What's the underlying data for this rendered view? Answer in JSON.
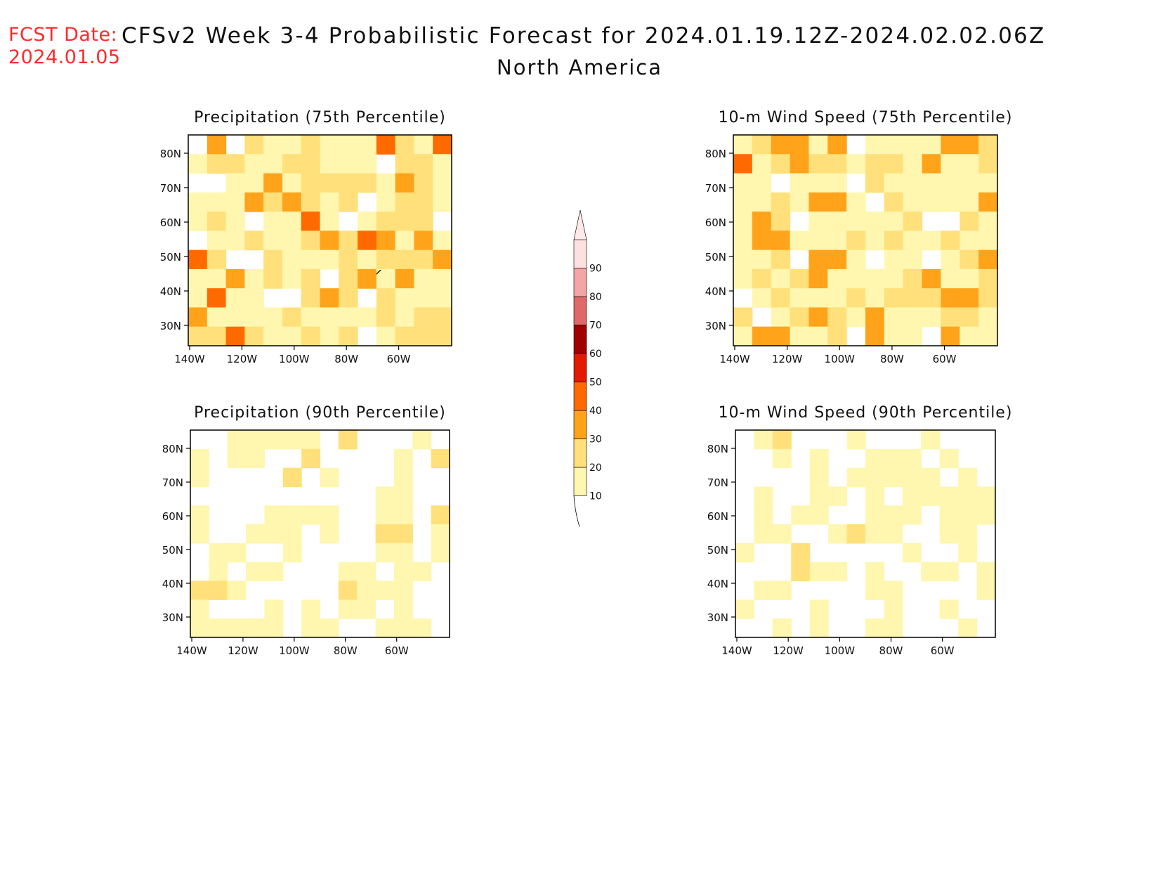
{
  "header": {
    "fcst_label": "FCST Date:",
    "fcst_date": "2024.01.05",
    "title": "CFSv2 Week 3-4 Probabilistic Forecast for 2024.01.19.12Z-2024.02.02.06Z",
    "subtitle": "North America"
  },
  "panels": [
    {
      "id": "precip-75",
      "title": "Precipitation (75th Percentile)",
      "intensity": 3
    },
    {
      "id": "wind-75",
      "title": "10-m Wind Speed (75th Percentile)",
      "intensity": 3
    },
    {
      "id": "precip-90",
      "title": "Precipitation (90th Percentile)",
      "intensity": 1
    },
    {
      "id": "wind-90",
      "title": "10-m Wind Speed (90th Percentile)",
      "intensity": 1
    }
  ],
  "axes": {
    "lat_labels": [
      "80N",
      "70N",
      "60N",
      "50N",
      "40N",
      "30N"
    ],
    "lon_labels": [
      "140W",
      "120W",
      "100W",
      "80W",
      "60W"
    ]
  },
  "colorbar": {
    "levels": [
      "10",
      "20",
      "30",
      "40",
      "50",
      "60",
      "70",
      "80",
      "90"
    ],
    "colors": [
      "#fff6b0",
      "#ffe07a",
      "#ffa31a",
      "#ff6a00",
      "#e31a00",
      "#a10000",
      "#e06868",
      "#f4a5a5",
      "#fde0e0",
      "#ffe8e8"
    ]
  }
}
